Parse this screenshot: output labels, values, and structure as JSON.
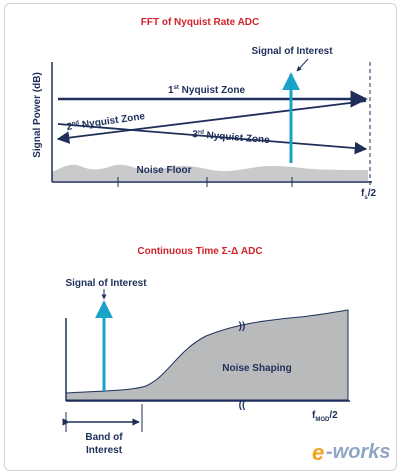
{
  "top_diagram": {
    "title": "FFT of Nyquist Rate ADC",
    "y_axis_label": "Signal Power (dB)",
    "signal_label": "Signal of Interest",
    "zone1": {
      "ordinal": "1",
      "sup": "st",
      "text": " Nyquist Zone"
    },
    "zone2": {
      "ordinal": "2",
      "sup": "nd",
      "text": " Nyquist Zone"
    },
    "zone3": {
      "ordinal": "3",
      "sup": "rd",
      "text": " Nyquist Zone"
    },
    "noise_floor_label": "Noise Floor",
    "x_end_label": {
      "main": "f",
      "sub": "s",
      "suffix": "/2"
    }
  },
  "bottom_diagram": {
    "title": "Continuous Time Σ-Δ ADC",
    "signal_label": "Signal of Interest",
    "noise_label": "Noise Shaping",
    "band_label_line1": "Band of",
    "band_label_line2": "Interest",
    "x_end_label": {
      "main": "f",
      "sub": "MOD",
      "suffix": "/2"
    }
  },
  "watermark": {
    "e": "e",
    "text": "-works"
  },
  "colors": {
    "title_red": "#d2232a",
    "navy": "#1f2f5a",
    "signal_cyan": "#1aa3c8",
    "noise_gray": "#c9cacc",
    "shaped_gray": "#b9babc"
  }
}
